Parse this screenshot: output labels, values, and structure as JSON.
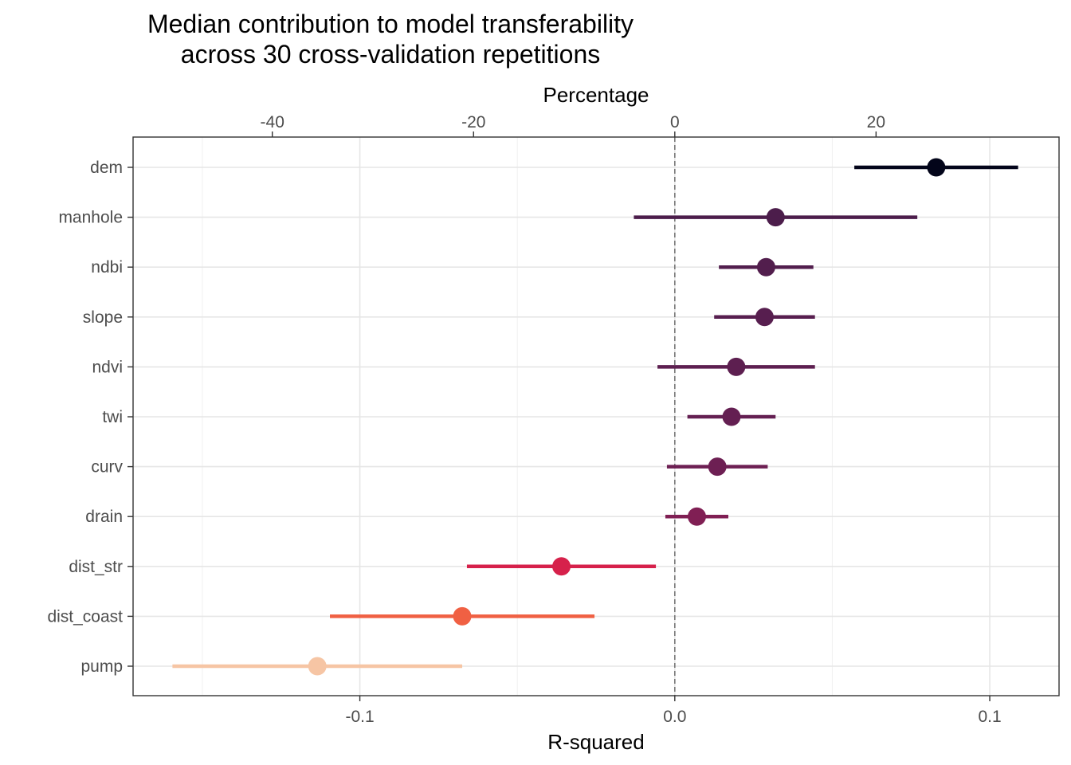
{
  "chart_data": {
    "type": "scatter",
    "title_lines": [
      "Median contribution to model transferability",
      "across 30 cross-validation repetitions"
    ],
    "xlabel": "R-squared",
    "x2label": "Percentage",
    "xlim": [
      -0.172,
      0.122
    ],
    "x_ticks": [
      -0.1,
      0.0,
      0.1
    ],
    "x_tick_labels": [
      "-0.1",
      "0.0",
      "0.1"
    ],
    "x2_ticks": [
      -40,
      -20,
      0,
      20
    ],
    "x2_tick_labels": [
      "-40",
      "-20",
      "0",
      "20"
    ],
    "x2_per_x": 313.0,
    "reference_line": 0,
    "grid": true,
    "categories": [
      "dem",
      "manhole",
      "ndbi",
      "slope",
      "ndvi",
      "twi",
      "curv",
      "drain",
      "dist_str",
      "dist_coast",
      "pump"
    ],
    "points": [
      {
        "name": "dem",
        "median": 0.083,
        "low": 0.057,
        "high": 0.109,
        "color": "#03051a"
      },
      {
        "name": "manhole",
        "median": 0.032,
        "low": -0.013,
        "high": 0.077,
        "color": "#4c1d4b"
      },
      {
        "name": "ndbi",
        "median": 0.029,
        "low": 0.014,
        "high": 0.044,
        "color": "#521e4d"
      },
      {
        "name": "slope",
        "median": 0.0285,
        "low": 0.0125,
        "high": 0.0445,
        "color": "#571e4f"
      },
      {
        "name": "ndvi",
        "median": 0.0195,
        "low": -0.0055,
        "high": 0.0445,
        "color": "#5d1f50"
      },
      {
        "name": "twi",
        "median": 0.018,
        "low": 0.004,
        "high": 0.032,
        "color": "#641f52"
      },
      {
        "name": "curv",
        "median": 0.0135,
        "low": -0.0025,
        "high": 0.0295,
        "color": "#6d1f53"
      },
      {
        "name": "drain",
        "median": 0.007,
        "low": -0.003,
        "high": 0.017,
        "color": "#801f54"
      },
      {
        "name": "dist_str",
        "median": -0.036,
        "low": -0.066,
        "high": -0.006,
        "color": "#d6214b"
      },
      {
        "name": "dist_coast",
        "median": -0.0675,
        "low": -0.1095,
        "high": -0.0255,
        "color": "#f06043"
      },
      {
        "name": "pump",
        "median": -0.1135,
        "low": -0.1595,
        "high": -0.0675,
        "color": "#f6c5a4"
      }
    ]
  }
}
